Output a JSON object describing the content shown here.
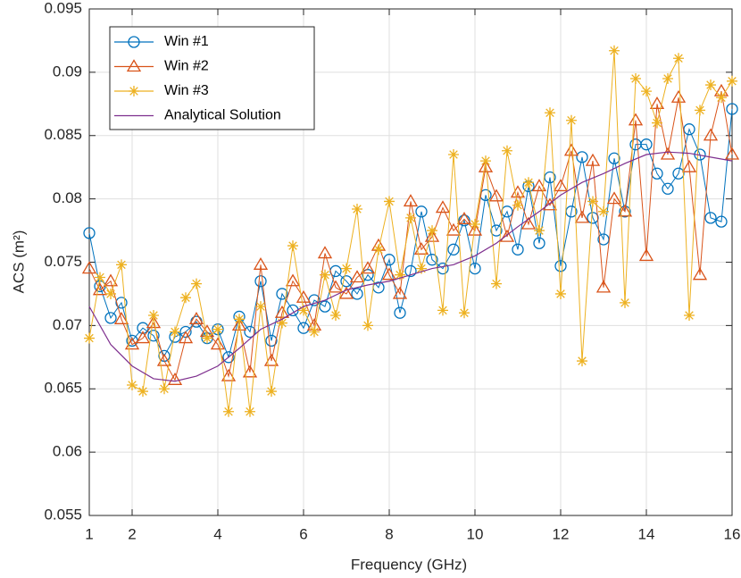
{
  "chart_data": {
    "type": "line",
    "xlabel": "Frequency (GHz)",
    "ylabel": "ACS (m²)",
    "xlim": [
      1,
      16
    ],
    "ylim": [
      0.055,
      0.095
    ],
    "xticks": [
      1,
      2,
      4,
      6,
      8,
      10,
      12,
      14,
      16
    ],
    "yticks": [
      0.055,
      0.06,
      0.065,
      0.07,
      0.075,
      0.08,
      0.085,
      0.09,
      0.095
    ],
    "grid": true,
    "legend": "upper left",
    "x": [
      1,
      1.25,
      1.5,
      1.75,
      2,
      2.25,
      2.5,
      2.75,
      3,
      3.25,
      3.5,
      3.75,
      4,
      4.25,
      4.5,
      4.75,
      5,
      5.25,
      5.5,
      5.75,
      6,
      6.25,
      6.5,
      6.75,
      7,
      7.25,
      7.5,
      7.75,
      8,
      8.25,
      8.5,
      8.75,
      9,
      9.25,
      9.5,
      9.75,
      10,
      10.25,
      10.5,
      10.75,
      11,
      11.25,
      11.5,
      11.75,
      12,
      12.25,
      12.5,
      12.75,
      13,
      13.25,
      13.5,
      13.75,
      14,
      14.25,
      14.5,
      14.75,
      15,
      15.25,
      15.5,
      15.75,
      16
    ],
    "series": [
      {
        "name": "Win #1",
        "color": "#0072BD",
        "marker": "circle",
        "values": [
          0.0773,
          0.0731,
          0.0706,
          0.0718,
          0.0688,
          0.0698,
          0.0692,
          0.0676,
          0.0691,
          0.0695,
          0.0703,
          0.069,
          0.0697,
          0.0675,
          0.0707,
          0.0695,
          0.0735,
          0.0688,
          0.0725,
          0.0712,
          0.0698,
          0.072,
          0.0715,
          0.0743,
          0.0735,
          0.0725,
          0.074,
          0.073,
          0.0752,
          0.071,
          0.0743,
          0.079,
          0.0752,
          0.0745,
          0.076,
          0.0783,
          0.0745,
          0.0803,
          0.0775,
          0.079,
          0.076,
          0.081,
          0.0765,
          0.0817,
          0.0747,
          0.079,
          0.0833,
          0.0785,
          0.0768,
          0.0832,
          0.079,
          0.0843,
          0.0843,
          0.082,
          0.0808,
          0.082,
          0.0855,
          0.0835,
          0.0785,
          0.0782,
          0.0871
        ]
      },
      {
        "name": "Win #2",
        "color": "#D95319",
        "marker": "triangle",
        "values": [
          0.0745,
          0.0728,
          0.0735,
          0.0705,
          0.0685,
          0.069,
          0.0702,
          0.0672,
          0.0657,
          0.069,
          0.0705,
          0.0695,
          0.0685,
          0.066,
          0.07,
          0.0663,
          0.0748,
          0.0672,
          0.071,
          0.0735,
          0.0722,
          0.07,
          0.0757,
          0.073,
          0.0725,
          0.0738,
          0.0745,
          0.0763,
          0.074,
          0.0725,
          0.0798,
          0.076,
          0.077,
          0.0793,
          0.0775,
          0.0784,
          0.0775,
          0.0825,
          0.0802,
          0.077,
          0.0805,
          0.078,
          0.081,
          0.0795,
          0.081,
          0.0838,
          0.0785,
          0.083,
          0.073,
          0.08,
          0.079,
          0.0862,
          0.0755,
          0.0875,
          0.0835,
          0.088,
          0.0825,
          0.074,
          0.085,
          0.0885,
          0.0835
        ]
      },
      {
        "name": "Win #3",
        "color": "#EDB120",
        "marker": "asterisk",
        "values": [
          0.069,
          0.0738,
          0.0725,
          0.0748,
          0.0653,
          0.0648,
          0.0708,
          0.065,
          0.0695,
          0.0722,
          0.0733,
          0.069,
          0.0697,
          0.0632,
          0.0705,
          0.0632,
          0.0715,
          0.0648,
          0.0702,
          0.0763,
          0.0712,
          0.0695,
          0.074,
          0.0708,
          0.0745,
          0.0792,
          0.07,
          0.076,
          0.0798,
          0.074,
          0.0785,
          0.0745,
          0.0775,
          0.0712,
          0.0835,
          0.071,
          0.078,
          0.083,
          0.0733,
          0.0838,
          0.0795,
          0.0813,
          0.0775,
          0.0868,
          0.0725,
          0.0862,
          0.0672,
          0.0798,
          0.079,
          0.0917,
          0.0718,
          0.0895,
          0.0885,
          0.086,
          0.0895,
          0.0911,
          0.0708,
          0.087,
          0.089,
          0.088,
          0.0893
        ]
      },
      {
        "name": "Analytical Solution",
        "color": "#7E2F8E",
        "marker": "none",
        "x": [
          1,
          1.5,
          2,
          2.5,
          3,
          3.5,
          4,
          4.5,
          5,
          5.5,
          6,
          6.5,
          7,
          7.5,
          8,
          8.5,
          9,
          9.5,
          10,
          10.5,
          11,
          11.5,
          12,
          12.5,
          13,
          13.5,
          14,
          14.5,
          15,
          15.5,
          16
        ],
        "values": [
          0.0715,
          0.0685,
          0.0668,
          0.0658,
          0.0656,
          0.066,
          0.0668,
          0.0682,
          0.0697,
          0.0705,
          0.0715,
          0.072,
          0.0728,
          0.0732,
          0.0735,
          0.074,
          0.0745,
          0.0748,
          0.0755,
          0.0765,
          0.0778,
          0.079,
          0.0803,
          0.0813,
          0.082,
          0.0828,
          0.0835,
          0.0837,
          0.0836,
          0.0833,
          0.083
        ]
      }
    ]
  }
}
